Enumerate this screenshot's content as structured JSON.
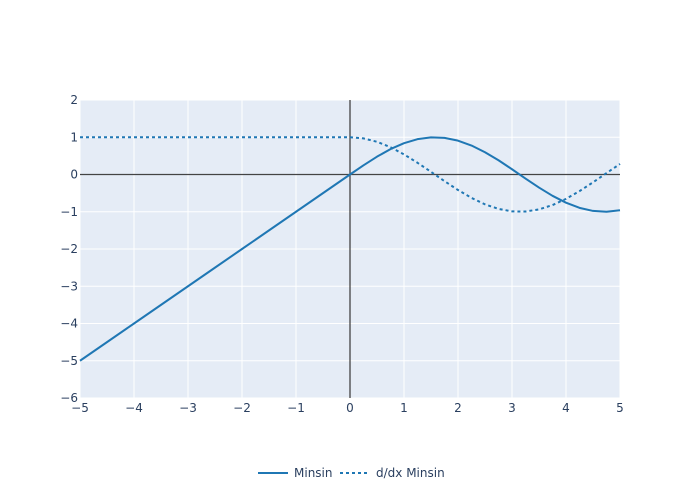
{
  "chart_data": {
    "type": "line",
    "title": "",
    "xlabel": "",
    "ylabel": "",
    "xlim": [
      -5,
      5
    ],
    "ylim": [
      -6,
      2
    ],
    "x_ticks": [
      -5,
      -4,
      -3,
      -2,
      -1,
      0,
      1,
      2,
      3,
      4,
      5
    ],
    "y_ticks": [
      -6,
      -5,
      -4,
      -3,
      -2,
      -1,
      0,
      1,
      2
    ],
    "x_tick_labels": [
      "−5",
      "−4",
      "−3",
      "−2",
      "−1",
      "0",
      "1",
      "2",
      "3",
      "4",
      "5"
    ],
    "y_tick_labels": [
      "−6",
      "−5",
      "−4",
      "−3",
      "−2",
      "−1",
      "0",
      "1",
      "2"
    ],
    "grid": true,
    "legend_placement": "bottom-center",
    "colors": {
      "plot_background": "#e5ecf6",
      "grid": "#ffffff",
      "zero_line": "#444444",
      "axis_text": "#2a3f5f",
      "series": "#1f77b4"
    },
    "series": [
      {
        "name": "Minsin",
        "line_style": "solid",
        "x": [
          -5,
          -4.5,
          -4,
          -3.5,
          -3,
          -2.5,
          -2,
          -1.5,
          -1,
          -0.5,
          0,
          0.25,
          0.5,
          0.75,
          1,
          1.25,
          1.5,
          1.75,
          2,
          2.25,
          2.5,
          2.75,
          3,
          3.25,
          3.5,
          3.75,
          4,
          4.25,
          4.5,
          4.75,
          5
        ],
        "y": [
          -5,
          -4.5,
          -4,
          -3.5,
          -3,
          -2.5,
          -2,
          -1.5,
          -1,
          -0.5,
          0,
          0.247,
          0.479,
          0.682,
          0.841,
          0.949,
          0.997,
          0.984,
          0.909,
          0.778,
          0.598,
          0.382,
          0.141,
          -0.108,
          -0.351,
          -0.572,
          -0.757,
          -0.895,
          -0.978,
          -0.999,
          -0.959
        ]
      },
      {
        "name": "d/dx Minsin",
        "line_style": "dot",
        "x": [
          -5,
          -4.5,
          -4,
          -3.5,
          -3,
          -2.5,
          -2,
          -1.5,
          -1,
          -0.5,
          -0.01,
          0.25,
          0.5,
          0.75,
          1,
          1.25,
          1.5,
          1.75,
          2,
          2.25,
          2.5,
          2.75,
          3,
          3.25,
          3.5,
          3.75,
          4,
          4.25,
          4.5,
          4.75,
          5
        ],
        "y": [
          1,
          1,
          1,
          1,
          1,
          1,
          1,
          1,
          1,
          1,
          1,
          0.969,
          0.878,
          0.732,
          0.54,
          0.315,
          0.071,
          -0.178,
          -0.416,
          -0.628,
          -0.801,
          -0.924,
          -0.99,
          -0.994,
          -0.936,
          -0.821,
          -0.654,
          -0.446,
          -0.211,
          0.038,
          0.284
        ]
      }
    ]
  }
}
